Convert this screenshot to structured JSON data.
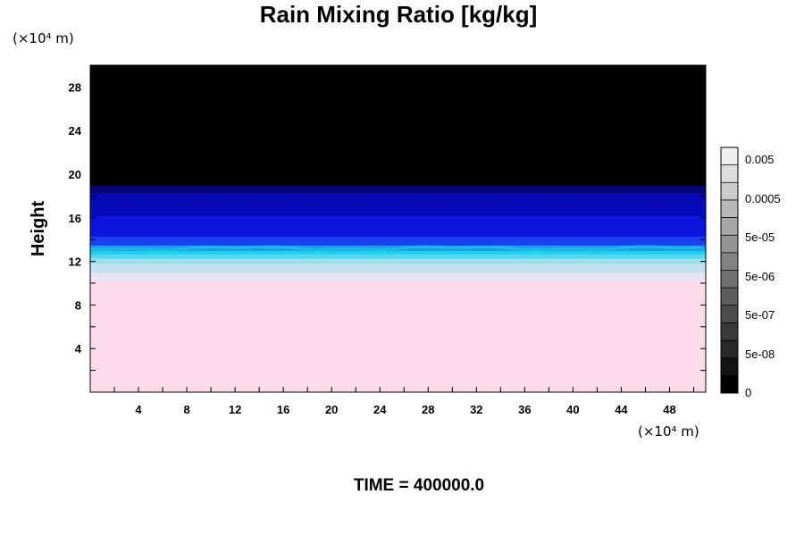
{
  "chart_data": {
    "type": "heatmap",
    "title": "Rain Mixing Ratio [kg/kg]",
    "ylabel": "Height",
    "x_unit": "(×10⁴ m)",
    "y_unit": "(×10⁴ m)",
    "x_ticks": [
      4,
      8,
      12,
      16,
      20,
      24,
      28,
      32,
      36,
      40,
      44,
      48
    ],
    "y_ticks": [
      4,
      8,
      12,
      16,
      20,
      24,
      28
    ],
    "xlim": [
      0,
      51
    ],
    "ylim": [
      0,
      30
    ],
    "colorbar": {
      "labels": [
        "0.005",
        "0.0005",
        "5e-05",
        "5e-06",
        "5e-07",
        "5e-08",
        "0"
      ],
      "colors": [
        "#000000",
        "#141414",
        "#282828",
        "#3a3a3a",
        "#4c4c4c",
        "#5e5e5e",
        "#707070",
        "#828282",
        "#949494",
        "#a6a6a6",
        "#b8b8b8",
        "#cacaca",
        "#dcdcdc",
        "#eeeeee"
      ]
    },
    "layers": [
      {
        "from": 0,
        "to": 10.3,
        "color": "#fcdcea"
      },
      {
        "from": 10.3,
        "to": 11.0,
        "color": "#e8e4f2"
      },
      {
        "from": 11.0,
        "to": 11.8,
        "color": "#c6e2f0"
      },
      {
        "from": 11.8,
        "to": 12.3,
        "color": "#9fdcec"
      },
      {
        "from": 12.3,
        "to": 12.7,
        "color": "#55d8ee"
      },
      {
        "from": 12.7,
        "to": 13.0,
        "color": "#1ccfe9"
      },
      {
        "from": 13.0,
        "to": 13.5,
        "color": "#1a9ee8"
      },
      {
        "from": 13.5,
        "to": 14.3,
        "color": "#1b40f0"
      },
      {
        "from": 14.3,
        "to": 16.2,
        "color": "#0d14e0"
      },
      {
        "from": 16.2,
        "to": 18.3,
        "color": "#0708b8"
      },
      {
        "from": 18.3,
        "to": 19.0,
        "color": "#04047c"
      },
      {
        "from": 19.0,
        "to": 30,
        "color": "#000000"
      }
    ]
  },
  "footer": {
    "time_label": "TIME = 400000.0"
  }
}
